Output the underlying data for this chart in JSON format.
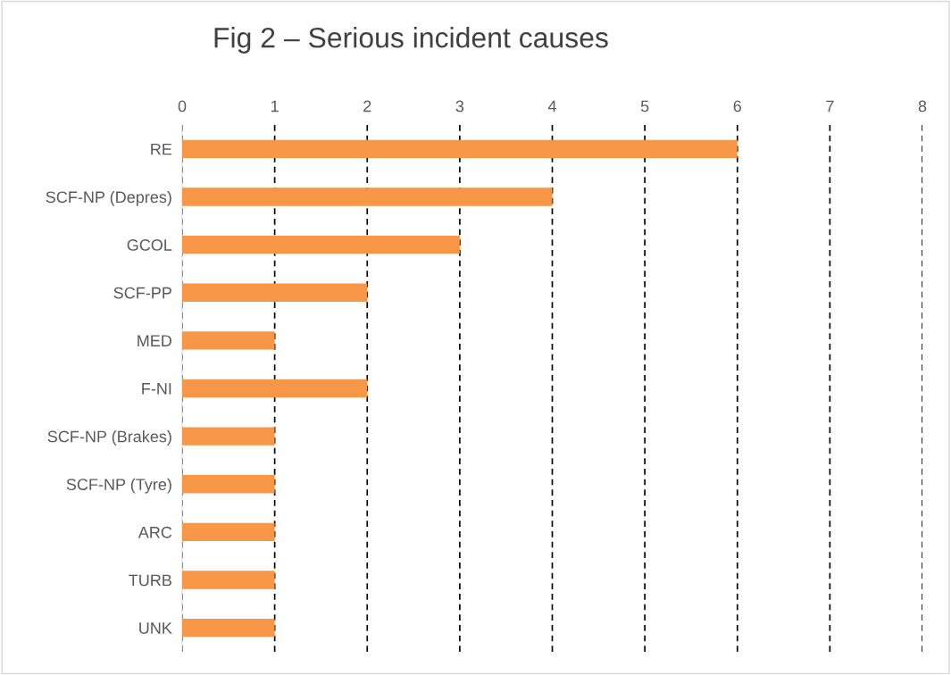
{
  "chart_data": {
    "type": "bar",
    "orientation": "horizontal",
    "title": "Fig 2 – Serious incident causes",
    "categories": [
      "RE",
      "SCF-NP (Depres)",
      "GCOL",
      "SCF-PP",
      "MED",
      "F-NI",
      "SCF-NP (Brakes)",
      "SCF-NP (Tyre)",
      "ARC",
      "TURB",
      "UNK"
    ],
    "values": [
      6,
      4,
      3,
      2,
      1,
      2,
      1,
      1,
      1,
      1,
      1
    ],
    "color": "#f79646",
    "xlim": [
      0,
      8
    ],
    "xticks": [
      0,
      1,
      2,
      3,
      4,
      5,
      6,
      7,
      8
    ],
    "grid": "x",
    "legend": false
  }
}
